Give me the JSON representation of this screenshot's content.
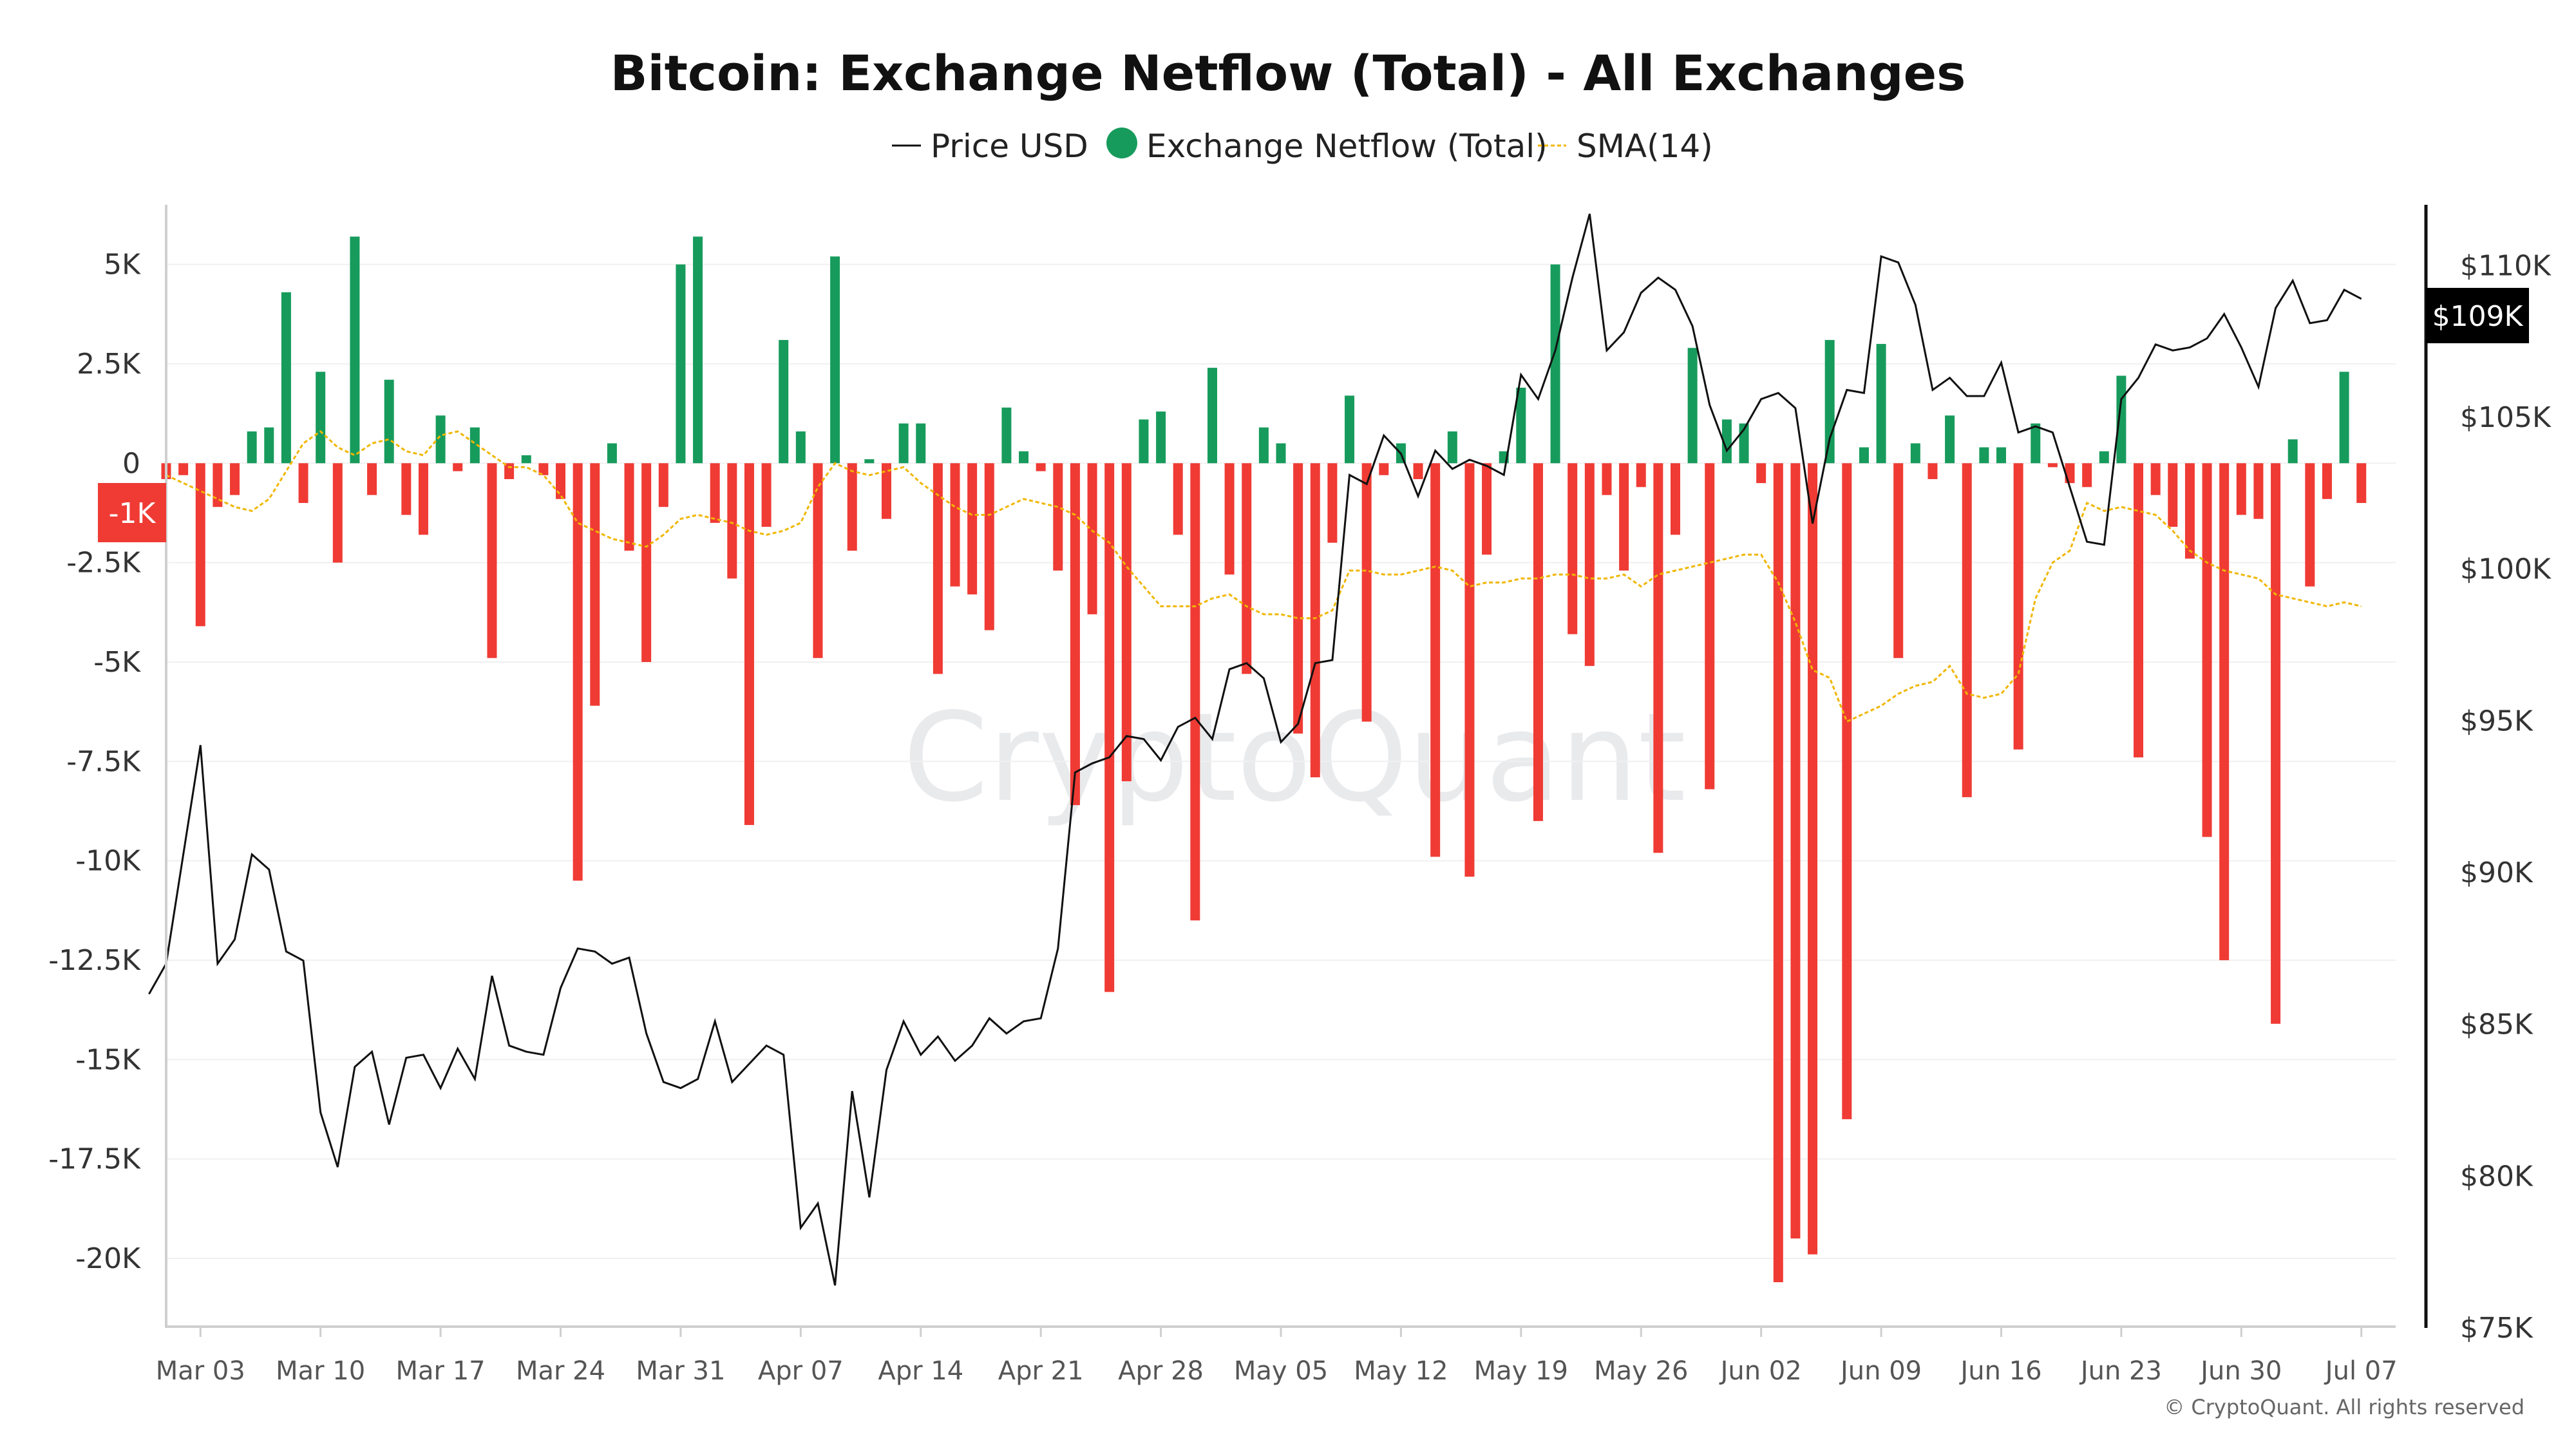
{
  "chart_data": {
    "type": "bar",
    "title": "Bitcoin: Exchange Netflow (Total) - All Exchanges",
    "legend": [
      "Price USD",
      "Exchange Netflow (Total)",
      "SMA(14)"
    ],
    "watermark": "CryptoQuant",
    "credit": "© CryptoQuant. All rights reserved",
    "colors": {
      "positive": "#179b5c",
      "negative": "#ef3b34",
      "price": "#111111",
      "sma": "#f0b600",
      "badge_netflow": "#ef3b34",
      "badge_price": "#000000"
    },
    "left_axis": {
      "ticks": [
        5000,
        2500,
        0,
        -2500,
        -5000,
        -7500,
        -10000,
        -12500,
        -15000,
        -17500,
        -20000
      ],
      "tick_labels": [
        "5K",
        "2.5K",
        "0",
        "-2.5K",
        "-5K",
        "-7.5K",
        "-10K",
        "-12.5K",
        "-15K",
        "-17.5K",
        "-20K"
      ],
      "ylim": [
        -21750,
        6500
      ]
    },
    "right_axis": {
      "ticks": [
        75000,
        80000,
        85000,
        90000,
        95000,
        100000,
        105000,
        110000
      ],
      "tick_labels": [
        "$75K",
        "$80K",
        "$85K",
        "$90K",
        "$95K",
        "$100K",
        "$105K",
        "$110K"
      ],
      "ylim": [
        75000,
        112000
      ]
    },
    "x_ticks": {
      "labels": [
        "Mar 03",
        "Mar 10",
        "Mar 17",
        "Mar 24",
        "Mar 31",
        "Apr 07",
        "Apr 14",
        "Apr 21",
        "Apr 28",
        "May 05",
        "May 12",
        "May 19",
        "May 26",
        "Jun 02",
        "Jun 09",
        "Jun 16",
        "Jun 23",
        "Jun 30",
        "Jul 07"
      ],
      "day_index": [
        2,
        9,
        16,
        23,
        30,
        37,
        44,
        51,
        58,
        65,
        72,
        79,
        86,
        93,
        100,
        107,
        114,
        121,
        128
      ]
    },
    "x_range": [
      0,
      130
    ],
    "last_values": {
      "netflow_label": "-1K",
      "price_label": "$109K",
      "netflow": -1000,
      "price": 109000
    },
    "netflow": [
      [
        0,
        -400
      ],
      [
        1,
        -300
      ],
      [
        2,
        -4100
      ],
      [
        3,
        -1100
      ],
      [
        4,
        -800
      ],
      [
        5,
        800
      ],
      [
        6,
        900
      ],
      [
        7,
        4300
      ],
      [
        8,
        -1000
      ],
      [
        9,
        2300
      ],
      [
        10,
        -2500
      ],
      [
        11,
        5700
      ],
      [
        12,
        -800
      ],
      [
        13,
        2100
      ],
      [
        14,
        -1300
      ],
      [
        15,
        -1800
      ],
      [
        16,
        1200
      ],
      [
        17,
        -200
      ],
      [
        18,
        900
      ],
      [
        19,
        -4900
      ],
      [
        20,
        -400
      ],
      [
        21,
        200
      ],
      [
        22,
        -300
      ],
      [
        23,
        -900
      ],
      [
        24,
        -10500
      ],
      [
        25,
        -6100
      ],
      [
        26,
        500
      ],
      [
        27,
        -2200
      ],
      [
        28,
        -5000
      ],
      [
        29,
        -1100
      ],
      [
        30,
        5000
      ],
      [
        31,
        5700
      ],
      [
        32,
        -1500
      ],
      [
        33,
        -2900
      ],
      [
        34,
        -9100
      ],
      [
        35,
        -1600
      ],
      [
        36,
        3100
      ],
      [
        37,
        800
      ],
      [
        38,
        -4900
      ],
      [
        39,
        5200
      ],
      [
        40,
        -2200
      ],
      [
        41,
        100
      ],
      [
        42,
        -1400
      ],
      [
        43,
        1000
      ],
      [
        44,
        1000
      ],
      [
        45,
        -5300
      ],
      [
        46,
        -3100
      ],
      [
        47,
        -3300
      ],
      [
        48,
        -4200
      ],
      [
        49,
        1400
      ],
      [
        50,
        300
      ],
      [
        51,
        -200
      ],
      [
        52,
        -2700
      ],
      [
        53,
        -8600
      ],
      [
        54,
        -3800
      ],
      [
        55,
        -13300
      ],
      [
        56,
        -8000
      ],
      [
        57,
        1100
      ],
      [
        58,
        1300
      ],
      [
        59,
        -1800
      ],
      [
        60,
        -11500
      ],
      [
        61,
        2400
      ],
      [
        62,
        -2800
      ],
      [
        63,
        -5300
      ],
      [
        64,
        900
      ],
      [
        65,
        500
      ],
      [
        66,
        -6800
      ],
      [
        67,
        -7900
      ],
      [
        68,
        -2000
      ],
      [
        69,
        1700
      ],
      [
        70,
        -6500
      ],
      [
        71,
        -300
      ],
      [
        72,
        500
      ],
      [
        73,
        -400
      ],
      [
        74,
        -9900
      ],
      [
        75,
        800
      ],
      [
        76,
        -10400
      ],
      [
        77,
        -2300
      ],
      [
        78,
        300
      ],
      [
        79,
        1900
      ],
      [
        80,
        -9000
      ],
      [
        81,
        5000
      ],
      [
        82,
        -4300
      ],
      [
        83,
        -5100
      ],
      [
        84,
        -800
      ],
      [
        85,
        -2700
      ],
      [
        86,
        -600
      ],
      [
        87,
        -9800
      ],
      [
        88,
        -1800
      ],
      [
        89,
        2900
      ],
      [
        90,
        -8200
      ],
      [
        91,
        1100
      ],
      [
        92,
        1000
      ],
      [
        93,
        -500
      ],
      [
        94,
        -20600
      ],
      [
        95,
        -19500
      ],
      [
        96,
        -19900
      ],
      [
        97,
        3100
      ],
      [
        98,
        -16500
      ],
      [
        99,
        400
      ],
      [
        100,
        3000
      ],
      [
        101,
        -4900
      ],
      [
        102,
        500
      ],
      [
        103,
        -400
      ],
      [
        104,
        1200
      ],
      [
        105,
        -8400
      ],
      [
        106,
        400
      ],
      [
        107,
        400
      ],
      [
        108,
        -7200
      ],
      [
        109,
        1000
      ],
      [
        110,
        -100
      ],
      [
        111,
        -500
      ],
      [
        112,
        -600
      ],
      [
        113,
        300
      ],
      [
        114,
        2200
      ],
      [
        115,
        -7400
      ],
      [
        116,
        -800
      ],
      [
        117,
        -1600
      ],
      [
        118,
        -2400
      ],
      [
        119,
        -9400
      ],
      [
        120,
        -12500
      ],
      [
        121,
        -1300
      ],
      [
        122,
        -1400
      ],
      [
        123,
        -14100
      ],
      [
        124,
        600
      ],
      [
        125,
        -3100
      ],
      [
        126,
        -900
      ],
      [
        127,
        2300
      ],
      [
        128,
        -1000
      ]
    ],
    "sma": [
      [
        0,
        -300
      ],
      [
        1,
        -500
      ],
      [
        2,
        -700
      ],
      [
        3,
        -900
      ],
      [
        4,
        -1100
      ],
      [
        5,
        -1200
      ],
      [
        6,
        -900
      ],
      [
        7,
        -200
      ],
      [
        8,
        500
      ],
      [
        9,
        800
      ],
      [
        10,
        400
      ],
      [
        11,
        200
      ],
      [
        12,
        500
      ],
      [
        13,
        600
      ],
      [
        14,
        300
      ],
      [
        15,
        200
      ],
      [
        16,
        700
      ],
      [
        17,
        800
      ],
      [
        18,
        500
      ],
      [
        19,
        200
      ],
      [
        20,
        -100
      ],
      [
        21,
        -100
      ],
      [
        22,
        -300
      ],
      [
        23,
        -800
      ],
      [
        24,
        -1500
      ],
      [
        25,
        -1700
      ],
      [
        26,
        -1900
      ],
      [
        27,
        -2000
      ],
      [
        28,
        -2100
      ],
      [
        29,
        -1800
      ],
      [
        30,
        -1400
      ],
      [
        31,
        -1300
      ],
      [
        32,
        -1400
      ],
      [
        33,
        -1500
      ],
      [
        34,
        -1700
      ],
      [
        35,
        -1800
      ],
      [
        36,
        -1700
      ],
      [
        37,
        -1500
      ],
      [
        38,
        -600
      ],
      [
        39,
        0
      ],
      [
        40,
        -200
      ],
      [
        41,
        -300
      ],
      [
        42,
        -200
      ],
      [
        43,
        -100
      ],
      [
        44,
        -500
      ],
      [
        45,
        -800
      ],
      [
        46,
        -1100
      ],
      [
        47,
        -1300
      ],
      [
        48,
        -1300
      ],
      [
        49,
        -1100
      ],
      [
        50,
        -900
      ],
      [
        51,
        -1000
      ],
      [
        52,
        -1100
      ],
      [
        53,
        -1300
      ],
      [
        54,
        -1700
      ],
      [
        55,
        -2000
      ],
      [
        56,
        -2600
      ],
      [
        57,
        -3100
      ],
      [
        58,
        -3600
      ],
      [
        59,
        -3600
      ],
      [
        60,
        -3600
      ],
      [
        61,
        -3400
      ],
      [
        62,
        -3300
      ],
      [
        63,
        -3600
      ],
      [
        64,
        -3800
      ],
      [
        65,
        -3800
      ],
      [
        66,
        -3900
      ],
      [
        67,
        -3900
      ],
      [
        68,
        -3700
      ],
      [
        69,
        -2700
      ],
      [
        70,
        -2700
      ],
      [
        71,
        -2800
      ],
      [
        72,
        -2800
      ],
      [
        73,
        -2700
      ],
      [
        74,
        -2600
      ],
      [
        75,
        -2700
      ],
      [
        76,
        -3100
      ],
      [
        77,
        -3000
      ],
      [
        78,
        -3000
      ],
      [
        79,
        -2900
      ],
      [
        80,
        -2900
      ],
      [
        81,
        -2800
      ],
      [
        82,
        -2800
      ],
      [
        83,
        -2900
      ],
      [
        84,
        -2900
      ],
      [
        85,
        -2800
      ],
      [
        86,
        -3100
      ],
      [
        87,
        -2800
      ],
      [
        88,
        -2700
      ],
      [
        89,
        -2600
      ],
      [
        90,
        -2500
      ],
      [
        91,
        -2400
      ],
      [
        92,
        -2300
      ],
      [
        93,
        -2300
      ],
      [
        94,
        -3000
      ],
      [
        95,
        -4000
      ],
      [
        96,
        -5200
      ],
      [
        97,
        -5400
      ],
      [
        98,
        -6500
      ],
      [
        99,
        -6300
      ],
      [
        100,
        -6100
      ],
      [
        101,
        -5800
      ],
      [
        102,
        -5600
      ],
      [
        103,
        -5500
      ],
      [
        104,
        -5100
      ],
      [
        105,
        -5800
      ],
      [
        106,
        -5900
      ],
      [
        107,
        -5800
      ],
      [
        108,
        -5300
      ],
      [
        109,
        -3400
      ],
      [
        110,
        -2500
      ],
      [
        111,
        -2200
      ],
      [
        112,
        -1000
      ],
      [
        113,
        -1200
      ],
      [
        114,
        -1100
      ],
      [
        115,
        -1200
      ],
      [
        116,
        -1300
      ],
      [
        117,
        -1700
      ],
      [
        118,
        -2200
      ],
      [
        119,
        -2500
      ],
      [
        120,
        -2700
      ],
      [
        121,
        -2800
      ],
      [
        122,
        -2900
      ],
      [
        123,
        -3300
      ],
      [
        124,
        -3400
      ],
      [
        125,
        -3500
      ],
      [
        126,
        -3600
      ],
      [
        127,
        -3500
      ],
      [
        128,
        -3600
      ]
    ],
    "price": [
      [
        -1,
        86000
      ],
      [
        0,
        87000
      ],
      [
        2,
        94200
      ],
      [
        3,
        87000
      ],
      [
        4,
        87800
      ],
      [
        5,
        90600
      ],
      [
        6,
        90100
      ],
      [
        7,
        87400
      ],
      [
        8,
        87100
      ],
      [
        9,
        82100
      ],
      [
        10,
        80300
      ],
      [
        11,
        83600
      ],
      [
        12,
        84100
      ],
      [
        13,
        81700
      ],
      [
        14,
        83900
      ],
      [
        15,
        84000
      ],
      [
        16,
        82900
      ],
      [
        17,
        84200
      ],
      [
        18,
        83200
      ],
      [
        19,
        86600
      ],
      [
        20,
        84300
      ],
      [
        21,
        84100
      ],
      [
        22,
        84000
      ],
      [
        23,
        86200
      ],
      [
        24,
        87500
      ],
      [
        25,
        87400
      ],
      [
        26,
        87000
      ],
      [
        27,
        87200
      ],
      [
        28,
        84700
      ],
      [
        29,
        83100
      ],
      [
        30,
        82900
      ],
      [
        31,
        83200
      ],
      [
        32,
        85100
      ],
      [
        33,
        83100
      ],
      [
        34,
        83700
      ],
      [
        35,
        84300
      ],
      [
        36,
        84000
      ],
      [
        37,
        78300
      ],
      [
        38,
        79100
      ],
      [
        39,
        76400
      ],
      [
        40,
        82800
      ],
      [
        41,
        79300
      ],
      [
        42,
        83500
      ],
      [
        43,
        85100
      ],
      [
        44,
        84000
      ],
      [
        45,
        84600
      ],
      [
        46,
        83800
      ],
      [
        47,
        84300
      ],
      [
        48,
        85200
      ],
      [
        49,
        84700
      ],
      [
        50,
        85100
      ],
      [
        51,
        85200
      ],
      [
        52,
        87500
      ],
      [
        53,
        93300
      ],
      [
        54,
        93600
      ],
      [
        55,
        93800
      ],
      [
        56,
        94500
      ],
      [
        57,
        94400
      ],
      [
        58,
        93700
      ],
      [
        59,
        94800
      ],
      [
        60,
        95100
      ],
      [
        61,
        94400
      ],
      [
        62,
        96700
      ],
      [
        63,
        96900
      ],
      [
        64,
        96400
      ],
      [
        65,
        94300
      ],
      [
        66,
        94900
      ],
      [
        67,
        96900
      ],
      [
        68,
        97000
      ],
      [
        69,
        103100
      ],
      [
        70,
        102800
      ],
      [
        71,
        104400
      ],
      [
        72,
        103800
      ],
      [
        73,
        102400
      ],
      [
        74,
        103900
      ],
      [
        75,
        103300
      ],
      [
        76,
        103600
      ],
      [
        77,
        103400
      ],
      [
        78,
        103100
      ],
      [
        79,
        106400
      ],
      [
        80,
        105600
      ],
      [
        81,
        107200
      ],
      [
        82,
        109600
      ],
      [
        83,
        111700
      ],
      [
        84,
        107200
      ],
      [
        85,
        107800
      ],
      [
        86,
        109100
      ],
      [
        87,
        109600
      ],
      [
        88,
        109200
      ],
      [
        89,
        108000
      ],
      [
        90,
        105400
      ],
      [
        91,
        103900
      ],
      [
        92,
        104600
      ],
      [
        93,
        105600
      ],
      [
        94,
        105800
      ],
      [
        95,
        105300
      ],
      [
        96,
        101500
      ],
      [
        97,
        104300
      ],
      [
        98,
        105900
      ],
      [
        99,
        105800
      ],
      [
        100,
        110300
      ],
      [
        101,
        110100
      ],
      [
        102,
        108700
      ],
      [
        103,
        105900
      ],
      [
        104,
        106300
      ],
      [
        105,
        105700
      ],
      [
        106,
        105700
      ],
      [
        107,
        106800
      ],
      [
        108,
        104500
      ],
      [
        109,
        104700
      ],
      [
        110,
        104500
      ],
      [
        111,
        102700
      ],
      [
        112,
        100900
      ],
      [
        113,
        100800
      ],
      [
        114,
        105600
      ],
      [
        115,
        106300
      ],
      [
        116,
        107400
      ],
      [
        117,
        107200
      ],
      [
        118,
        107300
      ],
      [
        119,
        107600
      ],
      [
        120,
        108400
      ],
      [
        121,
        107300
      ],
      [
        122,
        106000
      ],
      [
        123,
        108600
      ],
      [
        124,
        109500
      ],
      [
        125,
        108100
      ],
      [
        126,
        108200
      ],
      [
        127,
        109200
      ],
      [
        128,
        108900
      ]
    ]
  }
}
